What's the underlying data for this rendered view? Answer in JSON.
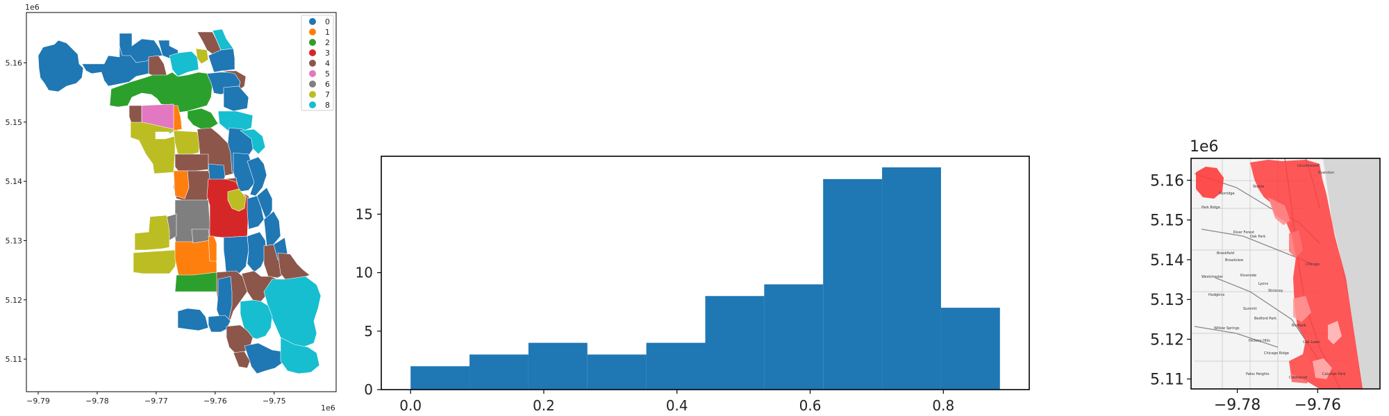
{
  "chart_data": [
    {
      "type": "map",
      "panel": "left-choropleth",
      "x_ticks": [
        "−9.79",
        "−9.78",
        "−9.77",
        "−9.76",
        "−9.75"
      ],
      "y_ticks": [
        "5.11",
        "5.12",
        "5.13",
        "5.14",
        "5.15",
        "5.16"
      ],
      "x_offset_label": "1e6",
      "y_offset_label": "1e6",
      "xlim": [
        -9.792,
        -9.7395
      ],
      "ylim": [
        5.1045,
        5.1685
      ],
      "legend_placement": "top-right",
      "legend": [
        {
          "label": "0",
          "color": "#1f77b4"
        },
        {
          "label": "1",
          "color": "#ff7f0e"
        },
        {
          "label": "2",
          "color": "#2ca02c"
        },
        {
          "label": "3",
          "color": "#d62728"
        },
        {
          "label": "4",
          "color": "#8c564b"
        },
        {
          "label": "5",
          "color": "#e377c2"
        },
        {
          "label": "6",
          "color": "#7f7f7f"
        },
        {
          "label": "7",
          "color": "#bcbd22"
        },
        {
          "label": "8",
          "color": "#17becf"
        }
      ]
    },
    {
      "type": "bar",
      "panel": "middle-histogram",
      "bin_edges": [
        0.0,
        0.0885,
        0.177,
        0.2655,
        0.354,
        0.4425,
        0.531,
        0.6195,
        0.708,
        0.7965,
        0.885
      ],
      "values": [
        2,
        3,
        4,
        3,
        4,
        8,
        9,
        18,
        19,
        7
      ],
      "color": "#1f77b4",
      "x_ticks": [
        "0.0",
        "0.2",
        "0.4",
        "0.6",
        "0.8"
      ],
      "y_ticks": [
        "0",
        "5",
        "10",
        "15"
      ],
      "xlim": [
        -0.044,
        0.929
      ],
      "ylim": [
        0,
        19.95
      ]
    },
    {
      "type": "map",
      "panel": "right-basemap-overlay",
      "x_ticks": [
        "−9.78",
        "−9.76"
      ],
      "y_ticks": [
        "5.11",
        "5.12",
        "5.13",
        "5.14",
        "5.15",
        "5.16"
      ],
      "offset_label": "1e6",
      "xlim": [
        -9.7915,
        -9.7445
      ],
      "ylim": [
        5.1075,
        5.1655
      ],
      "overlay_color": "#ff3b3b",
      "place_labels": [
        "Lincolnwood",
        "Evanston",
        "Skokie",
        "Norridge",
        "Park Ridge",
        "River Forest",
        "Oak Park",
        "Brookfield",
        "Broadview",
        "Westchester",
        "Riverside",
        "Lyons",
        "Hodgkins",
        "Stickney",
        "Chicago",
        "Summit",
        "Bedford Park",
        "Burbank",
        "Oak Lawn",
        "Willow Springs",
        "Hickory Hills",
        "Chicago Ridge",
        "Calumet Park",
        "Palos Heights",
        "Crestwood"
      ]
    }
  ]
}
